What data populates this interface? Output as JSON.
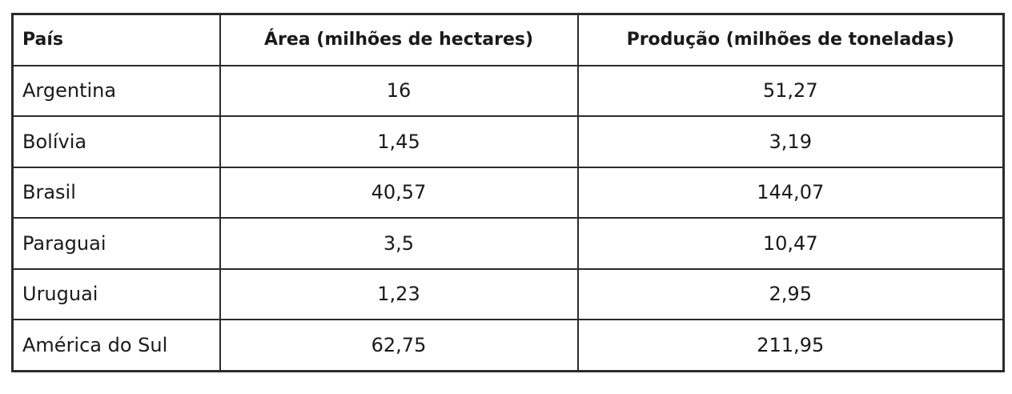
{
  "table": {
    "header": [
      "País",
      "Área (milhões de hectares)",
      "Produção (milhões de toneladas)"
    ],
    "rows": [
      [
        "Argentina",
        "16",
        "51,27"
      ],
      [
        "Bolívia",
        "1,45",
        "3,19"
      ],
      [
        "Brasil",
        "40,57",
        "144,07"
      ],
      [
        "Paraguai",
        "3,5",
        "10,47"
      ],
      [
        "Uruguai",
        "1,23",
        "2,95"
      ],
      [
        "América do Sul",
        "62,75",
        "211,95"
      ]
    ]
  }
}
